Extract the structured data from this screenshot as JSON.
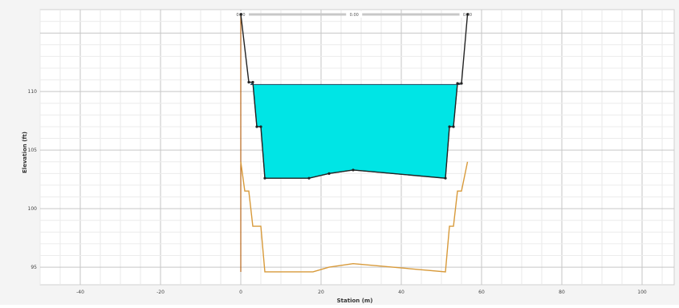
{
  "chart_data": {
    "type": "line",
    "title": "",
    "xlabel": "Station (m)",
    "ylabel": "Elevation (ft)",
    "xlim": [
      -50,
      108
    ],
    "ylim": [
      93.5,
      117
    ],
    "x_ticks": [
      -40,
      -20,
      0,
      20,
      40,
      60,
      80,
      100
    ],
    "y_ticks": [
      95,
      100,
      105,
      110
    ],
    "grid": true,
    "colors": {
      "water_fill": "#00e5e5",
      "upper_profile": "#222222",
      "lower_profile": "#d89a3a",
      "vertical_line": "#b8661a",
      "top_bar": "#c8c8c8"
    },
    "top_bar_labels": [
      "0.00",
      "0.00",
      "0.00"
    ],
    "series": [
      {
        "points": [
          [
            0,
            116.6
          ],
          [
            2,
            110.8
          ],
          [
            3,
            110.8
          ],
          [
            4,
            107.0
          ],
          [
            5,
            107.0
          ],
          [
            6,
            102.6
          ],
          [
            17,
            102.6
          ],
          [
            22,
            103.0
          ],
          [
            28,
            103.3
          ],
          [
            51,
            102.6
          ],
          [
            52,
            107.0
          ],
          [
            53,
            107.0
          ],
          [
            54,
            110.7
          ],
          [
            55,
            110.7
          ],
          [
            56.5,
            116.6
          ]
        ]
      },
      {
        "points": [
          [
            0,
            104.0
          ],
          [
            1,
            101.5
          ],
          [
            2,
            101.5
          ],
          [
            3,
            98.5
          ],
          [
            4,
            98.5
          ],
          [
            5,
            98.5
          ],
          [
            6,
            94.6
          ],
          [
            18,
            94.6
          ],
          [
            22,
            95.0
          ],
          [
            28,
            95.3
          ],
          [
            51,
            94.6
          ],
          [
            52,
            98.5
          ],
          [
            53,
            98.5
          ],
          [
            54,
            101.5
          ],
          [
            55,
            101.5
          ],
          [
            56.5,
            104.0
          ]
        ]
      }
    ],
    "water_surface": {
      "elevation": 110.6,
      "x_left": 2.5,
      "x_right": 54.5
    },
    "vertical_marker": {
      "x": 0,
      "y_from": 94.6,
      "y_to": 116.6
    }
  }
}
